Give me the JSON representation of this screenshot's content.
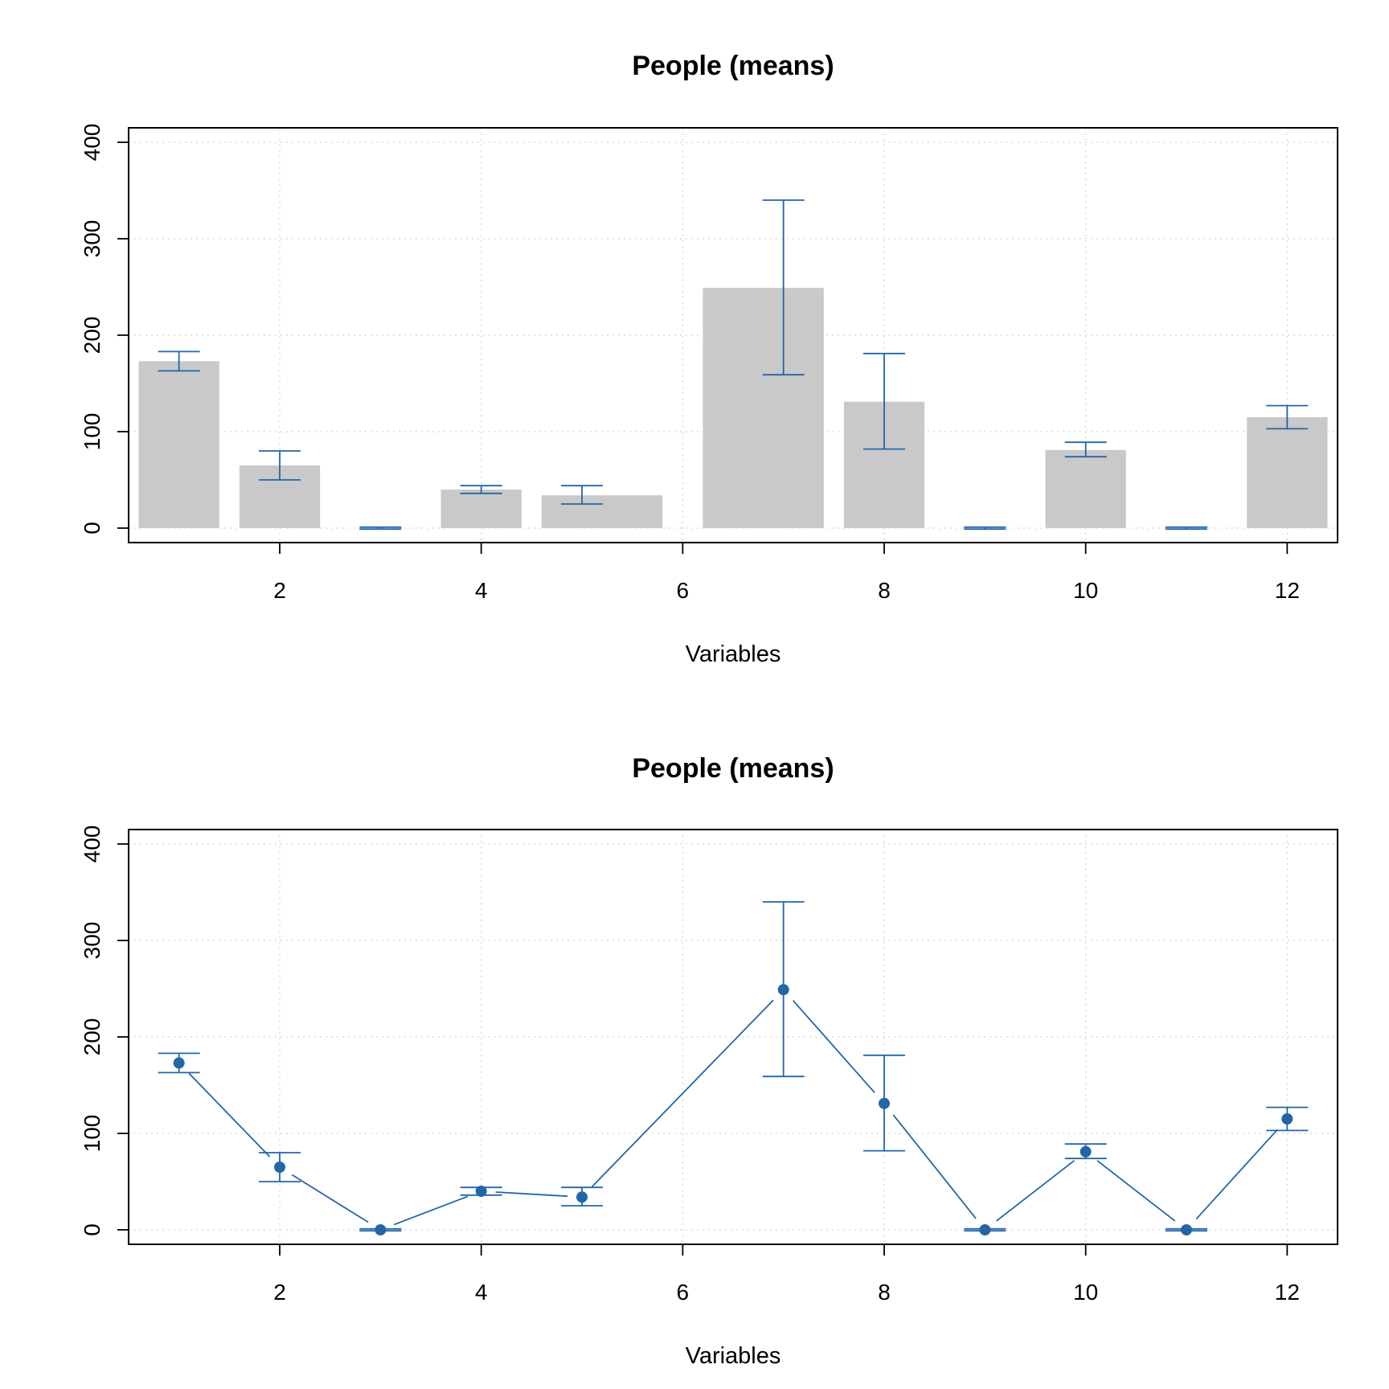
{
  "colors": {
    "bar_fill": "#c9c9c9",
    "error_bar": "#2266a8",
    "point": "#2266a8",
    "grid": "#d4d4d4",
    "axis": "#000000"
  },
  "chart_data": [
    {
      "type": "bar",
      "title": "People (means)",
      "xlabel": "Variables",
      "ylabel": "",
      "xlim": [
        0.5,
        12.5
      ],
      "ylim": [
        -15,
        415
      ],
      "x_ticks": [
        2,
        4,
        6,
        8,
        10,
        12
      ],
      "y_ticks": [
        0,
        100,
        200,
        300,
        400
      ],
      "grid": true,
      "x": [
        1,
        2,
        3,
        4,
        5,
        6,
        7,
        8,
        9,
        10,
        11,
        12
      ],
      "bar_span": [
        [
          0.6,
          1.4
        ],
        [
          1.6,
          2.4
        ],
        [
          2.8,
          3.2
        ],
        [
          3.6,
          4.4
        ],
        [
          4.6,
          5.8
        ],
        [
          6.0,
          6.0
        ],
        [
          6.2,
          7.4
        ],
        [
          7.6,
          8.4
        ],
        [
          8.8,
          9.2
        ],
        [
          9.6,
          10.4
        ],
        [
          10.8,
          11.2
        ],
        [
          11.6,
          12.4
        ]
      ],
      "series": [
        {
          "values": [
            173,
            65,
            0,
            40,
            34,
            null,
            249,
            131,
            0,
            81,
            0,
            115
          ],
          "lower": [
            163,
            50,
            -1,
            36,
            25,
            null,
            159,
            82,
            -1,
            74,
            -1,
            103
          ],
          "upper": [
            183,
            80,
            1,
            44,
            44,
            null,
            340,
            181,
            1,
            89,
            1,
            127
          ]
        }
      ]
    },
    {
      "type": "line",
      "title": "People (means)",
      "xlabel": "Variables",
      "ylabel": "",
      "xlim": [
        0.5,
        12.5
      ],
      "ylim": [
        -15,
        415
      ],
      "x_ticks": [
        2,
        4,
        6,
        8,
        10,
        12
      ],
      "y_ticks": [
        0,
        100,
        200,
        300,
        400
      ],
      "grid": true,
      "x": [
        1,
        2,
        3,
        4,
        5,
        7,
        8,
        9,
        10,
        11,
        12
      ],
      "series": [
        {
          "values": [
            173,
            65,
            0,
            40,
            34,
            249,
            131,
            0,
            81,
            0,
            115
          ],
          "lower": [
            163,
            50,
            -1,
            36,
            25,
            159,
            82,
            -1,
            74,
            -1,
            103
          ],
          "upper": [
            183,
            80,
            1,
            44,
            44,
            340,
            181,
            1,
            89,
            1,
            127
          ]
        }
      ]
    }
  ]
}
